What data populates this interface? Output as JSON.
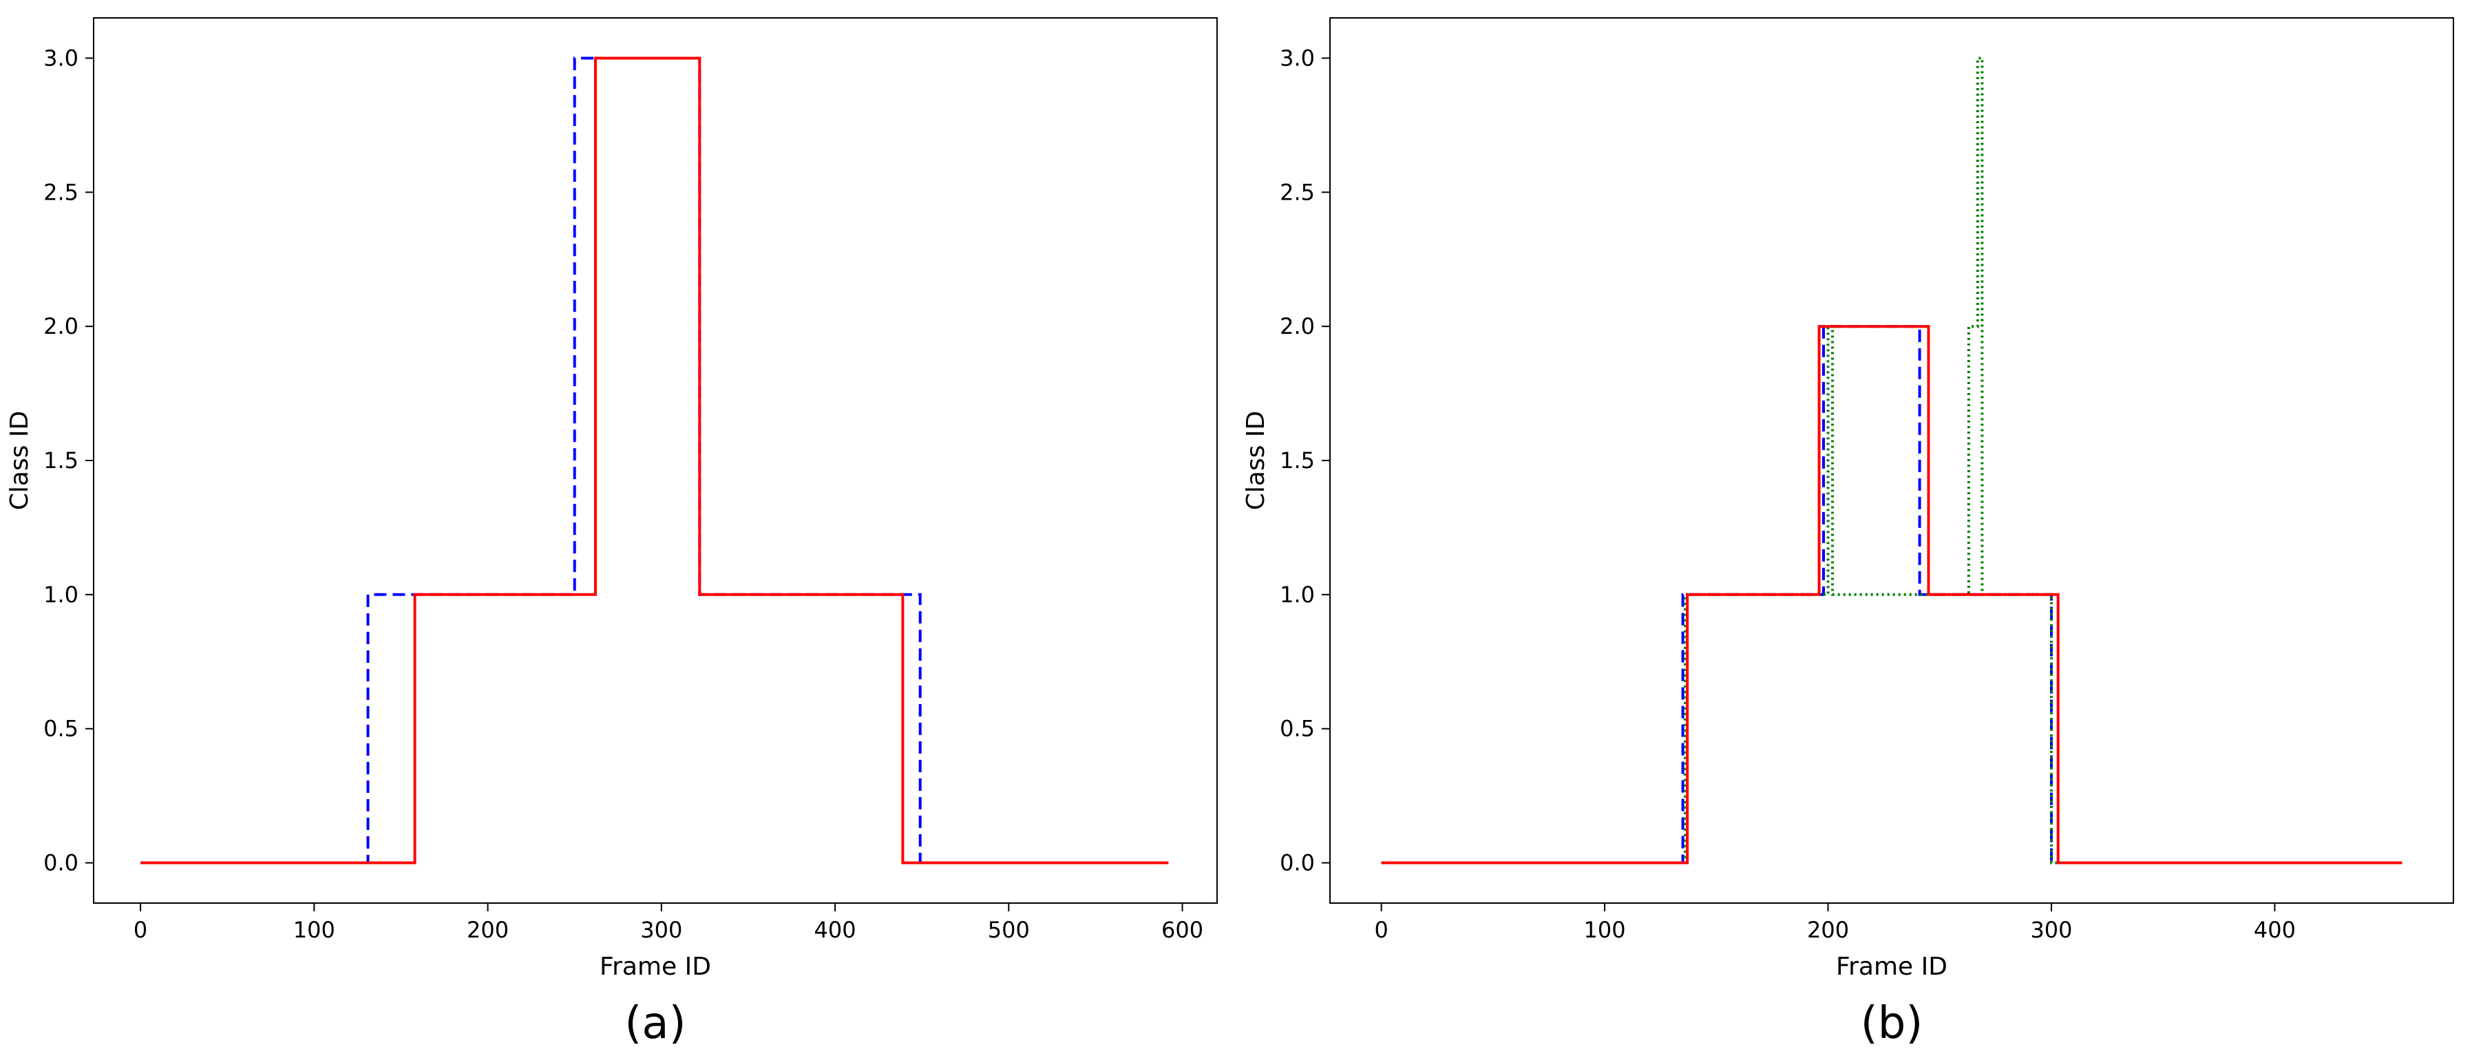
{
  "chart_data": [
    {
      "type": "line",
      "caption": "(a)",
      "xlabel": "Frame ID",
      "ylabel": "Class ID",
      "xlim": [
        -27,
        620
      ],
      "ylim": [
        -0.15,
        3.15
      ],
      "xticks": [
        0,
        100,
        200,
        300,
        400,
        500,
        600
      ],
      "yticks": [
        0.0,
        0.5,
        1.0,
        1.5,
        2.0,
        2.5,
        3.0
      ],
      "grid": false,
      "legend": "none",
      "series": [
        {
          "color": "#0000ff",
          "style": "dashed",
          "x": [
            0,
            131,
            131,
            250,
            250,
            260,
            260,
            322,
            322,
            449,
            449,
            592
          ],
          "y": [
            0,
            0,
            1,
            1,
            3,
            3,
            3,
            3,
            1,
            1,
            0,
            0
          ]
        },
        {
          "color": "#ff0000",
          "style": "solid",
          "x": [
            0,
            158,
            158,
            262,
            262,
            322,
            322,
            439,
            439,
            592
          ],
          "y": [
            0,
            0,
            1,
            1,
            3,
            3,
            1,
            1,
            0,
            0
          ]
        }
      ]
    },
    {
      "type": "line",
      "caption": "(b)",
      "xlabel": "Frame ID",
      "ylabel": "Class ID",
      "xlim": [
        -23,
        480
      ],
      "ylim": [
        -0.15,
        3.15
      ],
      "xticks": [
        0,
        100,
        200,
        300,
        400
      ],
      "yticks": [
        0.0,
        0.5,
        1.0,
        1.5,
        2.0,
        2.5,
        3.0
      ],
      "grid": false,
      "legend": "none",
      "series": [
        {
          "color": "#0000ff",
          "style": "dashed",
          "x": [
            0,
            135,
            135,
            198,
            198,
            241,
            241,
            300,
            300,
            457
          ],
          "y": [
            0,
            0,
            1,
            1,
            2,
            2,
            1,
            1,
            0,
            0
          ]
        },
        {
          "color": "#008000",
          "style": "dotted",
          "x": [
            0,
            136,
            136,
            200,
            200,
            202,
            202,
            263,
            263,
            267,
            267,
            269,
            269,
            300,
            300,
            457
          ],
          "y": [
            0,
            0,
            1,
            1,
            2,
            2,
            1,
            1,
            2,
            2,
            3,
            3,
            1,
            1,
            0,
            0
          ]
        },
        {
          "color": "#ff0000",
          "style": "solid",
          "x": [
            0,
            137,
            137,
            196,
            196,
            245,
            245,
            303,
            303,
            457
          ],
          "y": [
            0,
            0,
            1,
            1,
            2,
            2,
            1,
            1,
            0,
            0
          ]
        }
      ]
    }
  ]
}
